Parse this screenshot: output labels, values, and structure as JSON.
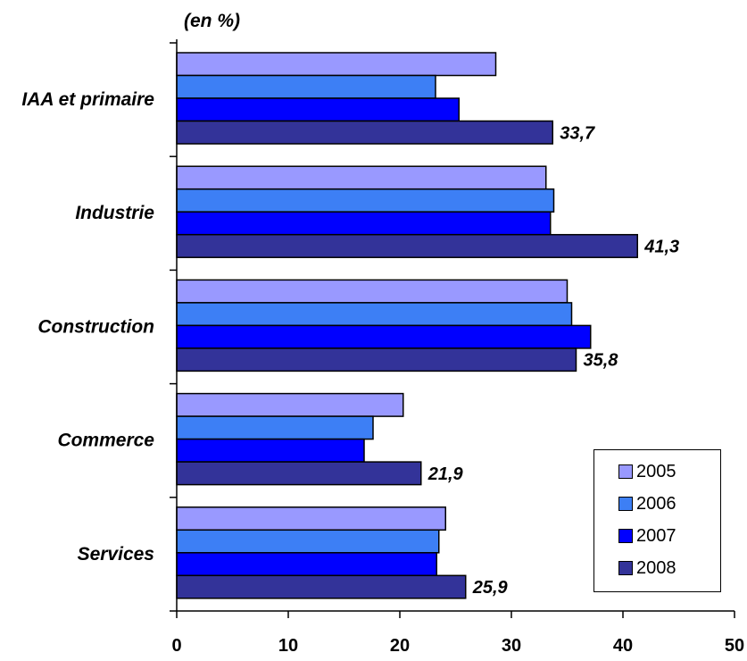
{
  "chart_data": {
    "type": "bar",
    "orientation": "horizontal",
    "unit_label": "(en %)",
    "categories": [
      "IAA et primaire",
      "Industrie",
      "Construction",
      "Commerce",
      "Services"
    ],
    "series": [
      {
        "name": "2005",
        "color": "#9999ff",
        "values": [
          28.6,
          33.1,
          35.0,
          20.3,
          24.1
        ]
      },
      {
        "name": "2006",
        "color": "#3d7ff5",
        "values": [
          23.2,
          33.8,
          35.4,
          17.6,
          23.5
        ]
      },
      {
        "name": "2007",
        "color": "#0000ff",
        "values": [
          25.3,
          33.5,
          37.1,
          16.8,
          23.3
        ]
      },
      {
        "name": "2008",
        "color": "#333399",
        "values": [
          33.7,
          41.3,
          35.8,
          21.9,
          25.9
        ]
      }
    ],
    "data_labels": [
      "33,7",
      "41,3",
      "35,8",
      "21,9",
      "25,9"
    ],
    "xlim": [
      0,
      50
    ],
    "x_ticks": [
      0,
      10,
      20,
      30,
      40,
      50
    ],
    "grid": false,
    "legend_position": "bottom-right"
  }
}
